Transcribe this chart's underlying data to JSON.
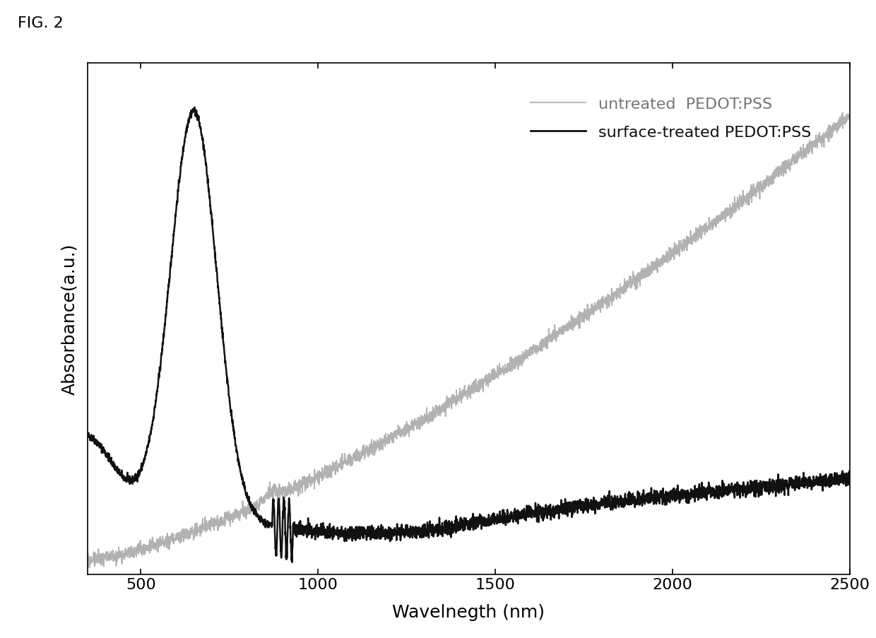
{
  "xlabel": "Wavelnegth (nm)",
  "ylabel": "Absorbance(a.u.)",
  "xlim": [
    350,
    2500
  ],
  "legend_entries": [
    "untreated  PEDOT:PSS",
    "surface-treated PEDOT:PSS"
  ],
  "untreated_color": "#aaaaaa",
  "treated_color": "#111111",
  "background_color": "#ffffff",
  "xticks": [
    500,
    1000,
    1500,
    2000,
    2500
  ],
  "fig_label": "FIG. 2",
  "ylim": [
    -0.02,
    1.05
  ]
}
